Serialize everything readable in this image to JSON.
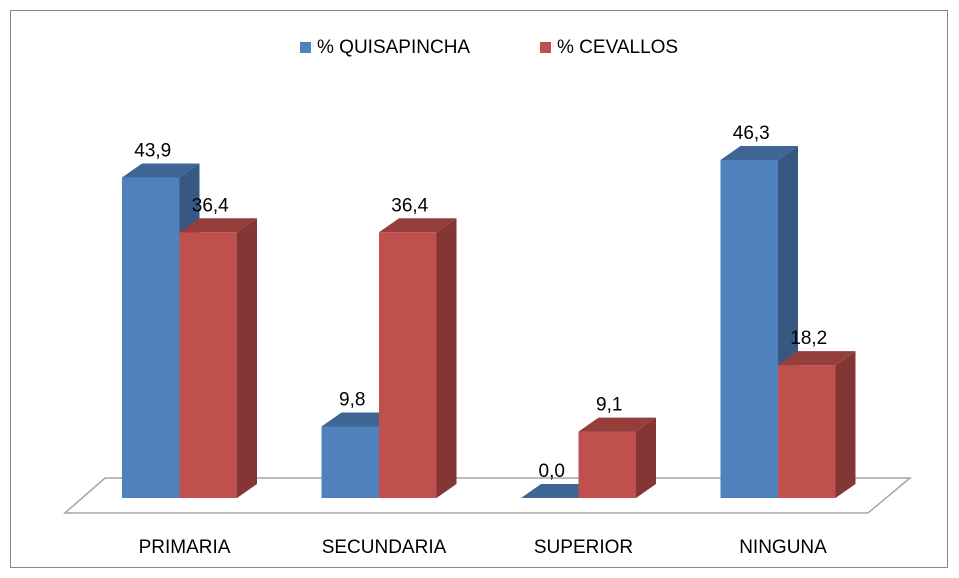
{
  "chart_data": {
    "type": "bar3d",
    "categories": [
      "PRIMARIA",
      "SECUNDARIA",
      "SUPERIOR",
      "NINGUNA"
    ],
    "series": [
      {
        "name": "% QUISAPINCHA",
        "color": "#4f81bd",
        "values": [
          43.9,
          9.8,
          0.0,
          46.3
        ],
        "value_labels": [
          "43,9",
          "9,8",
          "0,0",
          "46,3"
        ]
      },
      {
        "name": "% CEVALLOS",
        "color": "#c0504d",
        "values": [
          36.4,
          36.4,
          9.1,
          18.2
        ],
        "value_labels": [
          "36,4",
          "36,4",
          "9,1",
          "18,2"
        ]
      }
    ],
    "legend": "top"
  }
}
